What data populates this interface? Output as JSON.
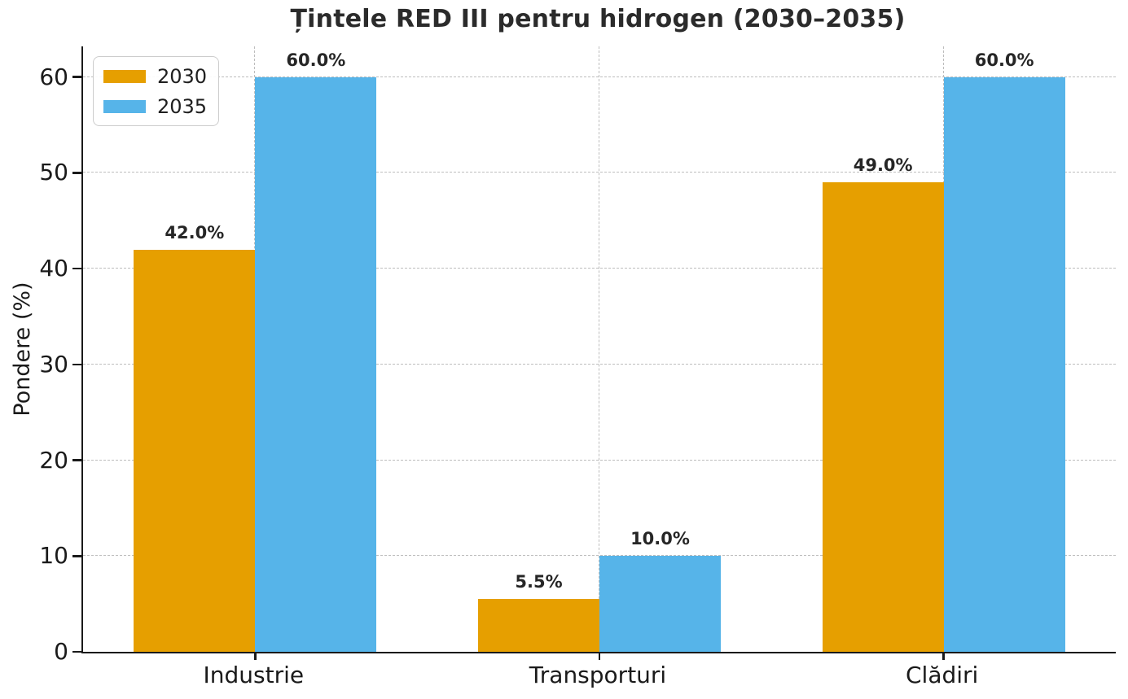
{
  "chart_data": {
    "type": "bar",
    "title": "Țintele RED III pentru hidrogen (2030–2035)",
    "xlabel": "",
    "ylabel": "Pondere (%)",
    "categories": [
      "Industrie",
      "Transporturi",
      "Clădiri"
    ],
    "series": [
      {
        "name": "2030",
        "color": "#E69F00",
        "values": [
          42.0,
          5.5,
          49.0
        ],
        "labels": [
          "42.0%",
          "5.5%",
          "49.0%"
        ]
      },
      {
        "name": "2035",
        "color": "#56B4E9",
        "values": [
          60.0,
          10.0,
          60.0
        ],
        "labels": [
          "60.0%",
          "10.0%",
          "60.0%"
        ]
      }
    ],
    "yticks": [
      0,
      10,
      20,
      30,
      40,
      50,
      60
    ],
    "ytick_labels": [
      "0",
      "10",
      "20",
      "30",
      "40",
      "50",
      "60"
    ],
    "ylim": [
      0,
      63.2
    ],
    "grid": {
      "visible": true,
      "style": "dashed",
      "axes": "both",
      "color": "#bdbdbd"
    },
    "legend": {
      "position": "upper-left",
      "entries": [
        "2030",
        "2035"
      ]
    },
    "colors": {
      "series_2030": "#E69F00",
      "series_2035": "#56B4E9",
      "spine": "#1a1a1a",
      "text": "#262626"
    }
  }
}
